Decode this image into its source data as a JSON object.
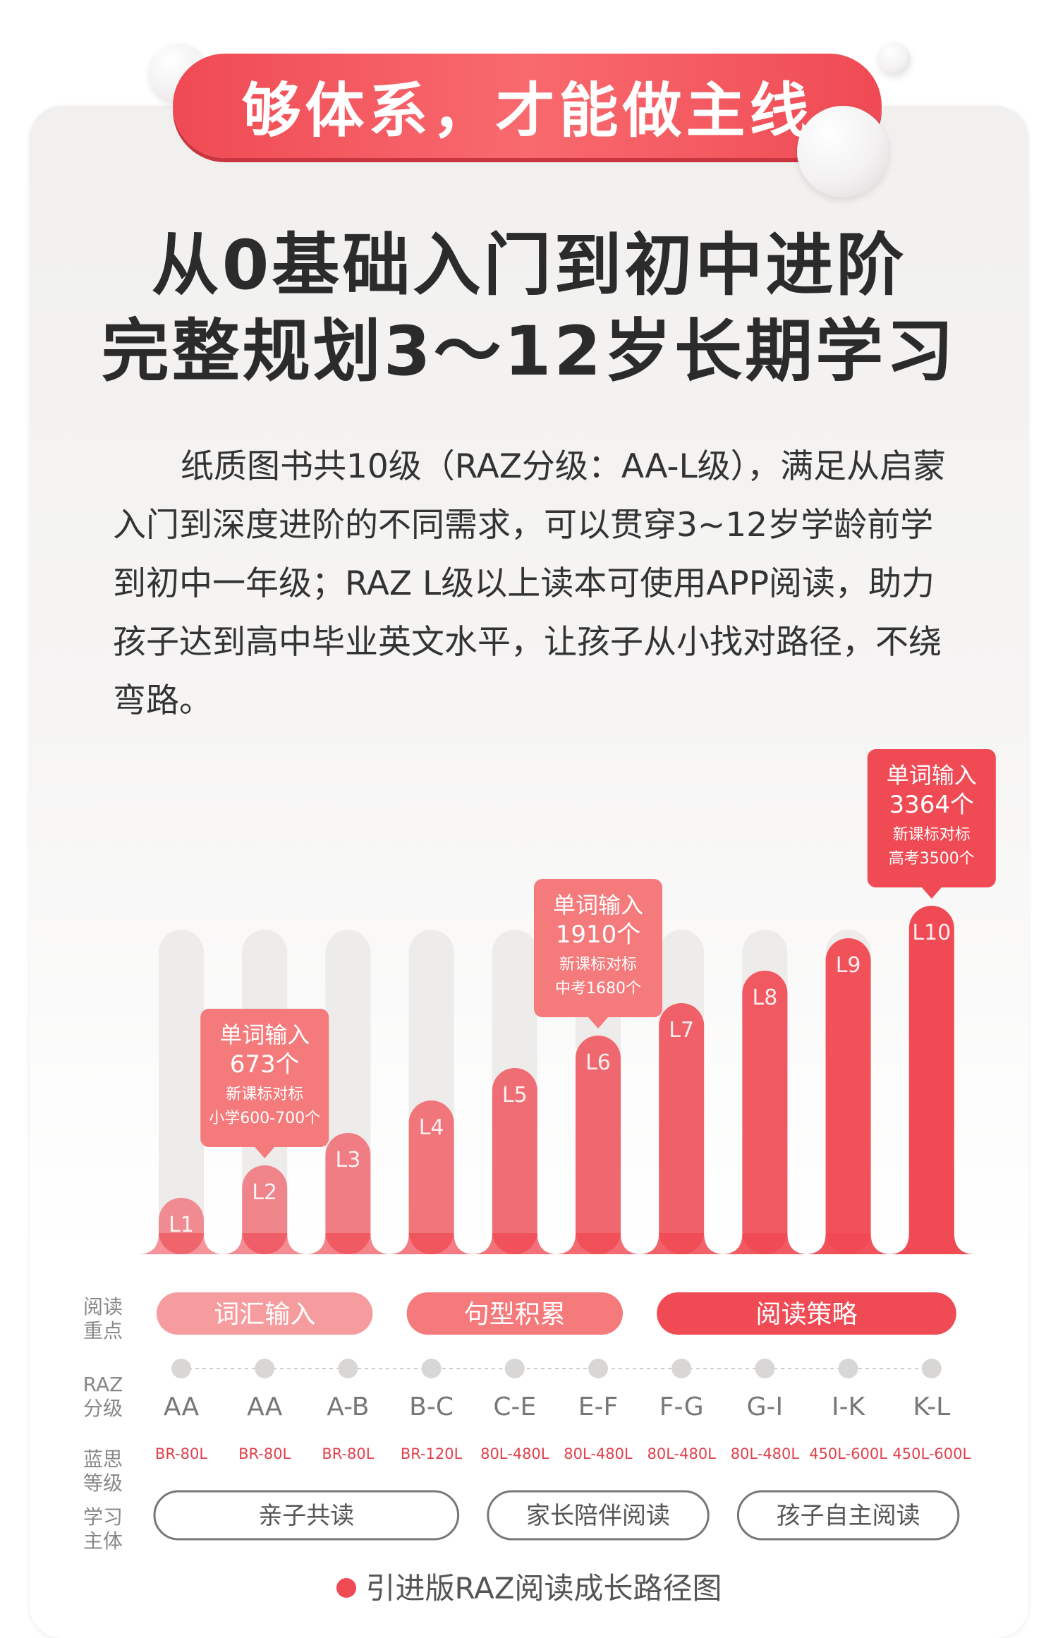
{
  "banner": "够体系，才能做主线",
  "title_line1": "从0基础入门到初中进阶",
  "title_line2": "完整规划3～12岁长期学习",
  "paragraph": "纸质图书共10级（RAZ分级：AA-L级），满足从启蒙入门到深度进阶的不同需求，可以贯穿3~12岁学龄前学到初中一年级；RAZ  L级以上读本可使用APP阅读，助力孩子达到高中毕业英文水平，让孩子从小找对路径，不绕弯路。",
  "chart_data": {
    "type": "bar",
    "levels": [
      "L1",
      "L2",
      "L3",
      "L4",
      "L5",
      "L6",
      "L7",
      "L8",
      "L9",
      "L10"
    ],
    "values": [
      1,
      2,
      3,
      4,
      5,
      6,
      7,
      8,
      9,
      10
    ],
    "bar_color": "#f04a54",
    "track_color": "#eeecea",
    "callouts": [
      {
        "level": "L2",
        "line1": "单词输入",
        "line2": "673个",
        "line3": "新课标对标",
        "line4": "小学600-700个"
      },
      {
        "level": "L6",
        "line1": "单词输入",
        "line2": "1910个",
        "line3": "新课标对标",
        "line4": "中考1680个"
      },
      {
        "level": "L10",
        "line1": "单词输入",
        "line2": "3364个",
        "line3": "新课标对标",
        "line4": "高考3500个"
      }
    ],
    "row_labels": {
      "focus": [
        "阅读",
        "重点"
      ],
      "raz": [
        "RAZ",
        "分级"
      ],
      "lexile": [
        "蓝思",
        "等级"
      ],
      "subject": [
        "学习",
        "主体"
      ]
    },
    "focus_groups": [
      {
        "label": "词汇输入",
        "from": 0,
        "to": 2
      },
      {
        "label": "句型积累",
        "from": 3,
        "to": 5
      },
      {
        "label": "阅读策略",
        "from": 6,
        "to": 9
      }
    ],
    "raz_levels": [
      "AA",
      "AA",
      "A-B",
      "B-C",
      "C-E",
      "E-F",
      "F-G",
      "G-I",
      "I-K",
      "K-L"
    ],
    "lexile_levels": [
      "BR-80L",
      "BR-80L",
      "BR-80L",
      "BR-120L",
      "80L-480L",
      "80L-480L",
      "80L-480L",
      "80L-480L",
      "450L-600L",
      "450L-600L"
    ],
    "subject_groups": [
      {
        "label": "亲子共读",
        "from": 0,
        "to": 3
      },
      {
        "label": "家长陪伴阅读",
        "from": 4,
        "to": 6
      },
      {
        "label": "孩子自主阅读",
        "from": 7,
        "to": 9
      }
    ],
    "legend": "引进版RAZ阅读成长路径图"
  }
}
